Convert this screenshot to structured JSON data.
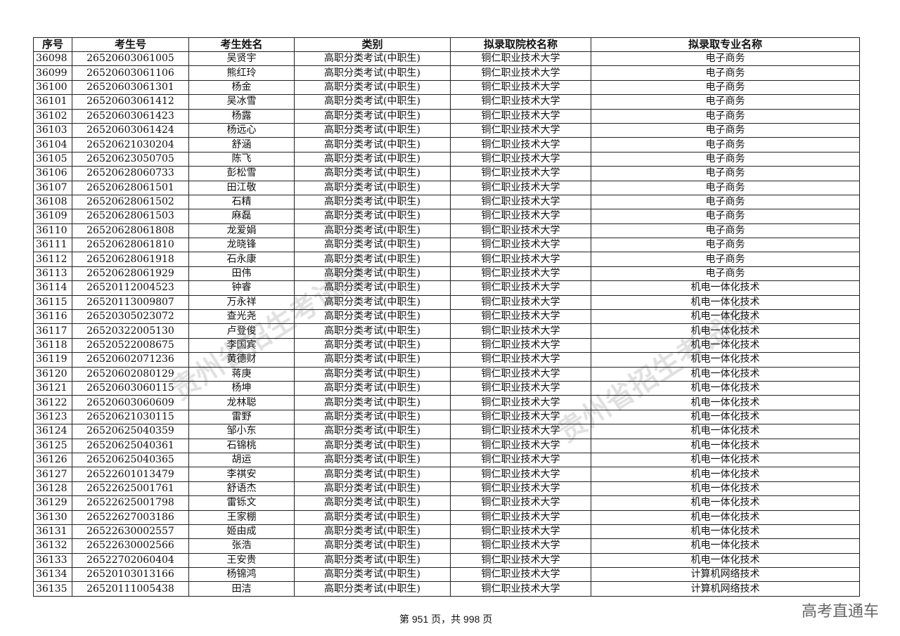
{
  "table": {
    "headers": [
      "序号",
      "考生号",
      "考生姓名",
      "类别",
      "拟录取院校名称",
      "拟录取专业名称"
    ],
    "rows": [
      [
        "36098",
        "26520603061005",
        "吴贤宇",
        "高职分类考试(中职生)",
        "铜仁职业技术大学",
        "电子商务"
      ],
      [
        "36099",
        "26520603061106",
        "熊红玲",
        "高职分类考试(中职生)",
        "铜仁职业技术大学",
        "电子商务"
      ],
      [
        "36100",
        "26520603061301",
        "杨金",
        "高职分类考试(中职生)",
        "铜仁职业技术大学",
        "电子商务"
      ],
      [
        "36101",
        "26520603061412",
        "吴冰雪",
        "高职分类考试(中职生)",
        "铜仁职业技术大学",
        "电子商务"
      ],
      [
        "36102",
        "26520603061423",
        "杨露",
        "高职分类考试(中职生)",
        "铜仁职业技术大学",
        "电子商务"
      ],
      [
        "36103",
        "26520603061424",
        "杨远心",
        "高职分类考试(中职生)",
        "铜仁职业技术大学",
        "电子商务"
      ],
      [
        "36104",
        "26520621030204",
        "舒涵",
        "高职分类考试(中职生)",
        "铜仁职业技术大学",
        "电子商务"
      ],
      [
        "36105",
        "26520623050705",
        "陈飞",
        "高职分类考试(中职生)",
        "铜仁职业技术大学",
        "电子商务"
      ],
      [
        "36106",
        "26520628060733",
        "彭松雪",
        "高职分类考试(中职生)",
        "铜仁职业技术大学",
        "电子商务"
      ],
      [
        "36107",
        "26520628061501",
        "田江敬",
        "高职分类考试(中职生)",
        "铜仁职业技术大学",
        "电子商务"
      ],
      [
        "36108",
        "26520628061502",
        "石精",
        "高职分类考试(中职生)",
        "铜仁职业技术大学",
        "电子商务"
      ],
      [
        "36109",
        "26520628061503",
        "麻磊",
        "高职分类考试(中职生)",
        "铜仁职业技术大学",
        "电子商务"
      ],
      [
        "36110",
        "26520628061808",
        "龙爱娟",
        "高职分类考试(中职生)",
        "铜仁职业技术大学",
        "电子商务"
      ],
      [
        "36111",
        "26520628061810",
        "龙晓锋",
        "高职分类考试(中职生)",
        "铜仁职业技术大学",
        "电子商务"
      ],
      [
        "36112",
        "26520628061918",
        "石永康",
        "高职分类考试(中职生)",
        "铜仁职业技术大学",
        "电子商务"
      ],
      [
        "36113",
        "26520628061929",
        "田伟",
        "高职分类考试(中职生)",
        "铜仁职业技术大学",
        "电子商务"
      ],
      [
        "36114",
        "26520112004523",
        "钟睿",
        "高职分类考试(中职生)",
        "铜仁职业技术大学",
        "机电一体化技术"
      ],
      [
        "36115",
        "26520113009807",
        "万永祥",
        "高职分类考试(中职生)",
        "铜仁职业技术大学",
        "机电一体化技术"
      ],
      [
        "36116",
        "26520305023072",
        "查光尧",
        "高职分类考试(中职生)",
        "铜仁职业技术大学",
        "机电一体化技术"
      ],
      [
        "36117",
        "26520322005130",
        "卢登俊",
        "高职分类考试(中职生)",
        "铜仁职业技术大学",
        "机电一体化技术"
      ],
      [
        "36118",
        "26520522008675",
        "李国宾",
        "高职分类考试(中职生)",
        "铜仁职业技术大学",
        "机电一体化技术"
      ],
      [
        "36119",
        "26520602071236",
        "黄德财",
        "高职分类考试(中职生)",
        "铜仁职业技术大学",
        "机电一体化技术"
      ],
      [
        "36120",
        "26520602080129",
        "蒋庚",
        "高职分类考试(中职生)",
        "铜仁职业技术大学",
        "机电一体化技术"
      ],
      [
        "36121",
        "26520603060115",
        "杨坤",
        "高职分类考试(中职生)",
        "铜仁职业技术大学",
        "机电一体化技术"
      ],
      [
        "36122",
        "26520603060609",
        "龙林聪",
        "高职分类考试(中职生)",
        "铜仁职业技术大学",
        "机电一体化技术"
      ],
      [
        "36123",
        "26520621030115",
        "雷野",
        "高职分类考试(中职生)",
        "铜仁职业技术大学",
        "机电一体化技术"
      ],
      [
        "36124",
        "26520625040359",
        "邹小东",
        "高职分类考试(中职生)",
        "铜仁职业技术大学",
        "机电一体化技术"
      ],
      [
        "36125",
        "26520625040361",
        "石锦桃",
        "高职分类考试(中职生)",
        "铜仁职业技术大学",
        "机电一体化技术"
      ],
      [
        "36126",
        "26520625040365",
        "胡运",
        "高职分类考试(中职生)",
        "铜仁职业技术大学",
        "机电一体化技术"
      ],
      [
        "36127",
        "26522601013479",
        "李祺安",
        "高职分类考试(中职生)",
        "铜仁职业技术大学",
        "机电一体化技术"
      ],
      [
        "36128",
        "26522625001761",
        "舒语杰",
        "高职分类考试(中职生)",
        "铜仁职业技术大学",
        "机电一体化技术"
      ],
      [
        "36129",
        "26522625001798",
        "雷铄文",
        "高职分类考试(中职生)",
        "铜仁职业技术大学",
        "机电一体化技术"
      ],
      [
        "36130",
        "26522627003186",
        "王家棚",
        "高职分类考试(中职生)",
        "铜仁职业技术大学",
        "机电一体化技术"
      ],
      [
        "36131",
        "26522630002557",
        "姬由成",
        "高职分类考试(中职生)",
        "铜仁职业技术大学",
        "机电一体化技术"
      ],
      [
        "36132",
        "26522630002566",
        "张浩",
        "高职分类考试(中职生)",
        "铜仁职业技术大学",
        "机电一体化技术"
      ],
      [
        "36133",
        "26522702060404",
        "王安贵",
        "高职分类考试(中职生)",
        "铜仁职业技术大学",
        "机电一体化技术"
      ],
      [
        "36134",
        "26520103013166",
        "杨锦鸿",
        "高职分类考试(中职生)",
        "铜仁职业技术大学",
        "计算机网络技术"
      ],
      [
        "36135",
        "26520111005438",
        "田洁",
        "高职分类考试(中职生)",
        "铜仁职业技术大学",
        "计算机网络技术"
      ]
    ]
  },
  "footer": {
    "page_text": "第 951 页，共 998 页"
  },
  "brand": "高考直通车",
  "watermark": "贵州省招生考试院"
}
